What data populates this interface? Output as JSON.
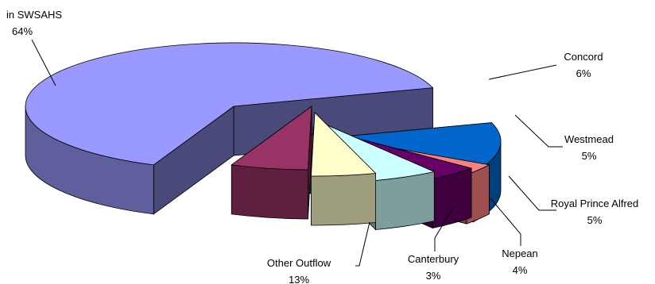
{
  "chart_data": {
    "type": "pie",
    "style": "3d-exploded",
    "slices": [
      {
        "label": "in SWSAHS",
        "value": 64,
        "value_label": "64%",
        "color": "#9999FF"
      },
      {
        "label": "Concord",
        "value": 6,
        "value_label": "6%",
        "color": "#993366"
      },
      {
        "label": "Westmead",
        "value": 5,
        "value_label": "5%",
        "color": "#FFFFCC"
      },
      {
        "label": "Royal Prince Alfred",
        "value": 5,
        "value_label": "5%",
        "color": "#CCFFFF"
      },
      {
        "label": "Nepean",
        "value": 4,
        "value_label": "4%",
        "color": "#660066"
      },
      {
        "label": "Canterbury",
        "value": 3,
        "value_label": "3%",
        "color": "#FF8080"
      },
      {
        "label": "Other Outflow",
        "value": 13,
        "value_label": "13%",
        "color": "#0066CC"
      }
    ]
  }
}
